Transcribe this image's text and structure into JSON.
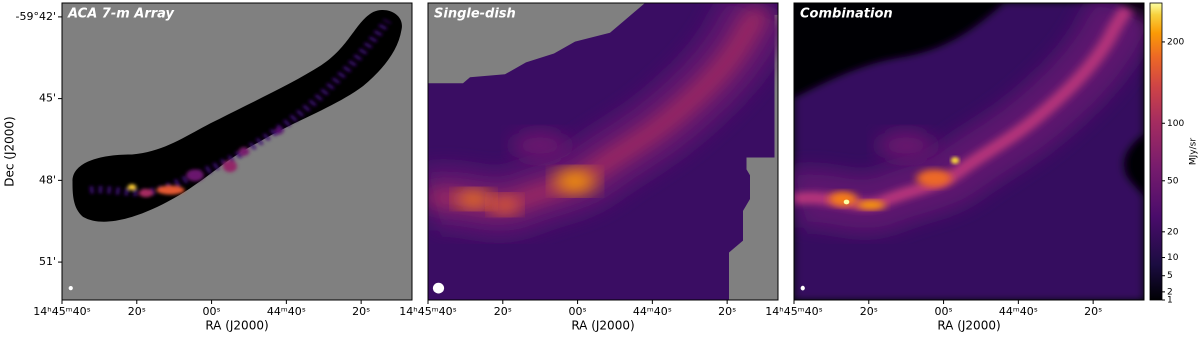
{
  "chart_data": [
    {
      "type": "image",
      "title": "ACA 7-m Array",
      "xlabel": "RA (J2000)",
      "ylabel": "Dec (J2000)",
      "xlim": [
        2740,
        2646.4
      ],
      "ylim": [
        -59.8732,
        -59.6915
      ],
      "xticks": [
        {
          "value": 2740,
          "label": "14ʰ45ᵐ40ˢ"
        },
        {
          "value": 2720,
          "label": "20ˢ"
        },
        {
          "value": 2700,
          "label": "00ˢ"
        },
        {
          "value": 2680,
          "label": "44ᵐ40ˢ"
        },
        {
          "value": 2660,
          "label": "20ˢ"
        }
      ],
      "yticks": [
        {
          "value": -59.7,
          "label": "-59°42'"
        },
        {
          "value": -59.75,
          "label": "45'"
        },
        {
          "value": -59.8,
          "label": "48'"
        },
        {
          "value": -59.85,
          "label": "51'"
        }
      ]
    },
    {
      "type": "image",
      "title": "Single-dish",
      "xlabel": "RA (J2000)",
      "xlim": [
        2740,
        2646.4
      ],
      "xticks": [
        {
          "value": 2740,
          "label": "14ʰ45ᵐ40ˢ"
        },
        {
          "value": 2720,
          "label": "20ˢ"
        },
        {
          "value": 2700,
          "label": "00ˢ"
        },
        {
          "value": 2680,
          "label": "44ᵐ40ˢ"
        },
        {
          "value": 2660,
          "label": "20ˢ"
        }
      ]
    },
    {
      "type": "image",
      "title": "Combination",
      "xlabel": "RA (J2000)",
      "xlim": [
        2740,
        2646.4
      ],
      "xticks": [
        {
          "value": 2740,
          "label": "14ʰ45ᵐ40ˢ"
        },
        {
          "value": 2720,
          "label": "20ˢ"
        },
        {
          "value": 2700,
          "label": "00ˢ"
        },
        {
          "value": 2680,
          "label": "44ᵐ40ˢ"
        },
        {
          "value": 2660,
          "label": "20ˢ"
        }
      ],
      "colorbar": {
        "label": "MJy/sr",
        "clim": [
          1,
          260
        ],
        "scale": "sqrt",
        "ticks": [
          1,
          2,
          5,
          10,
          20,
          50,
          100,
          200
        ]
      }
    }
  ]
}
